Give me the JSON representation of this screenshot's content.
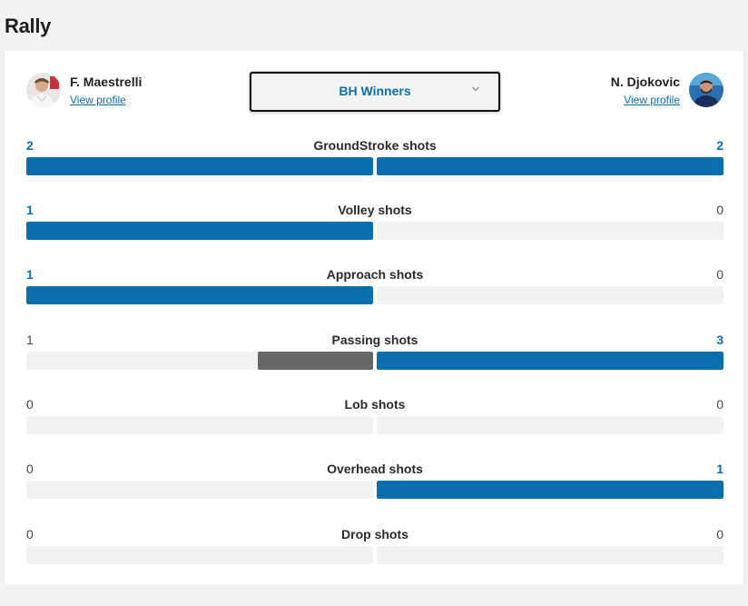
{
  "page_title": "Rally",
  "players": {
    "left": {
      "name": "F. Maestrelli",
      "link": "View profile"
    },
    "right": {
      "name": "N. Djokovic",
      "link": "View profile"
    }
  },
  "filter": {
    "selected": "BH Winners"
  },
  "colors": {
    "accent": "#0a6fae",
    "trail": "#666666",
    "track": "#f2f2f2"
  },
  "stats": [
    {
      "name": "GroundStroke shots",
      "left": "2",
      "right": "2",
      "left_share": 1.0,
      "right_share": 1.0
    },
    {
      "name": "Volley shots",
      "left": "1",
      "right": "0",
      "left_share": 1.0,
      "right_share": 0
    },
    {
      "name": "Approach shots",
      "left": "1",
      "right": "0",
      "left_share": 1.0,
      "right_share": 0
    },
    {
      "name": "Passing shots",
      "left": "1",
      "right": "3",
      "left_share": 0.333,
      "right_share": 1.0
    },
    {
      "name": "Lob shots",
      "left": "0",
      "right": "0",
      "left_share": 0,
      "right_share": 0
    },
    {
      "name": "Overhead shots",
      "left": "0",
      "right": "1",
      "left_share": 0,
      "right_share": 1.0
    },
    {
      "name": "Drop shots",
      "left": "0",
      "right": "0",
      "left_share": 0,
      "right_share": 0
    }
  ]
}
